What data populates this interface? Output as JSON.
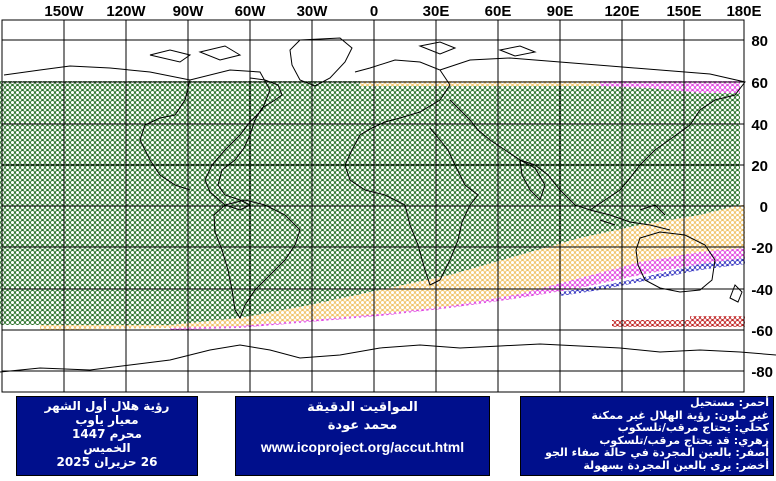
{
  "map": {
    "longitude_labels": [
      "150W",
      "120W",
      "90W",
      "60W",
      "30W",
      "0",
      "30E",
      "60E",
      "90E",
      "120E",
      "150E",
      "180E"
    ],
    "latitude_labels": [
      "80",
      "60",
      "40",
      "20",
      "0",
      "-20",
      "-40",
      "-60",
      "-80"
    ],
    "colors": {
      "visible_naked_eye_easy": "#1e6b1e",
      "visible_naked_eye_clear": "#f0c060",
      "optical_aid_may_see": "#e040e0",
      "needs_optical_aid": "#3030c0",
      "impossible": "#c02020",
      "no_color": "#ffffff",
      "visibility_cell_fill": "#ffffff",
      "grid": "#000000",
      "coast": "#000000"
    }
  },
  "info_left": {
    "title": "رؤية هلال أول الشهر",
    "criterion": "معيار ياوب",
    "month": "محرم 1447",
    "weekday": "الخميس",
    "date": "26 حزيران 2025"
  },
  "info_middle": {
    "title": "المواقيت الدقيقة",
    "author": "محمد عودة",
    "url": "www.icoproject.org/accut.html"
  },
  "legend": [
    {
      "text": "أحمر: مستحيل",
      "color": "red"
    },
    {
      "text": "غير ملون: رؤية الهلال غير ممكنة",
      "color": "none"
    },
    {
      "text": "كحلي: يحتاج مرقب/تلسكوب",
      "color": "navy"
    },
    {
      "text": "زهري: قد يحتاج مرقب/تلسكوب",
      "color": "pink"
    },
    {
      "text": "أصفر: بالعين المجردة في حالة صفاء الجو",
      "color": "yellow"
    },
    {
      "text": "أخضر: يرى بالعين المجردة بسهولة",
      "color": "green"
    }
  ]
}
